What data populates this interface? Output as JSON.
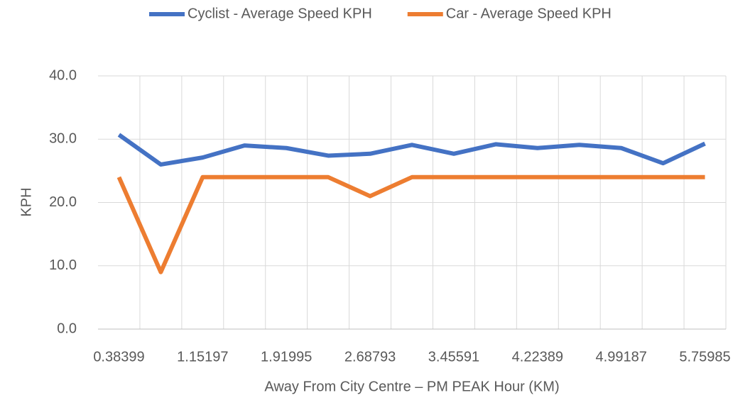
{
  "chart_data": {
    "type": "line",
    "x_label": "Away From City Centre – PM PEAK Hour (KM)",
    "y_label": "KPH",
    "categories": [
      "0.38399",
      null,
      "1.15197",
      null,
      "1.91995",
      null,
      "2.68793",
      null,
      "3.45591",
      null,
      "4.22389",
      null,
      "4.99187",
      null,
      "5.75985"
    ],
    "series": [
      {
        "name": "Cyclist - Average Speed KPH",
        "color": "#4472c4",
        "values": [
          30.7,
          26.0,
          27.1,
          29.0,
          28.6,
          27.4,
          27.7,
          29.1,
          27.7,
          29.2,
          28.6,
          29.1,
          28.6,
          26.2,
          29.3
        ]
      },
      {
        "name": "Car - Average Speed KPH",
        "color": "#ed7d31",
        "values": [
          24.0,
          9.0,
          24.0,
          24.0,
          24.0,
          24.0,
          21.0,
          24.0,
          24.0,
          24.0,
          24.0,
          24.0,
          24.0,
          24.0,
          24.0
        ]
      }
    ],
    "ylim": [
      0,
      40
    ],
    "yticks": [
      {
        "value": 0,
        "label": "0.0"
      },
      {
        "value": 10,
        "label": "10.0"
      },
      {
        "value": 20,
        "label": "20.0"
      },
      {
        "value": 30,
        "label": "30.0"
      },
      {
        "value": 40,
        "label": "40.0"
      }
    ],
    "grid": true,
    "legend": "top"
  }
}
